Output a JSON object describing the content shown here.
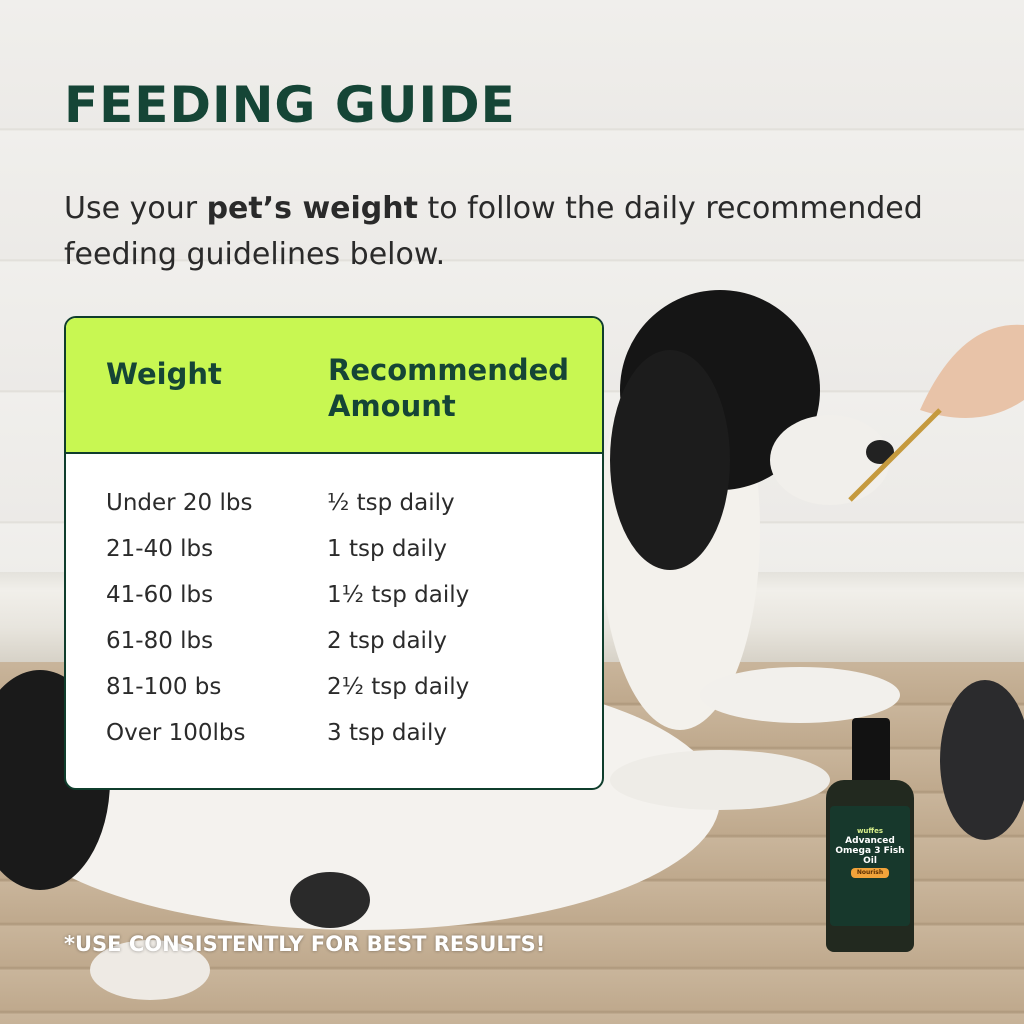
{
  "title": "FEEDING GUIDE",
  "subtitle": {
    "pre": "Use your ",
    "bold": "pet’s weight",
    "post": " to follow the daily recommended feeding guidelines below."
  },
  "table": {
    "headers": [
      "Weight",
      "Recommended Amount"
    ],
    "rows": [
      [
        "Under 20 lbs",
        "½ tsp daily"
      ],
      [
        "21-40 lbs",
        "1 tsp daily"
      ],
      [
        "41-60 lbs",
        "1½ tsp daily"
      ],
      [
        "61-80 lbs",
        "2 tsp daily"
      ],
      [
        "81-100 bs",
        "2½ tsp daily"
      ],
      [
        "Over 100lbs",
        "3 tsp daily"
      ]
    ]
  },
  "footnote": "*USE CONSISTENTLY FOR BEST RESULTS!",
  "product": {
    "brand": "wuffes",
    "name": "Advanced Omega 3 Fish Oil",
    "variant": "Nourish"
  },
  "colors": {
    "header_bg": "#c8f752",
    "dark_green": "#154536"
  }
}
